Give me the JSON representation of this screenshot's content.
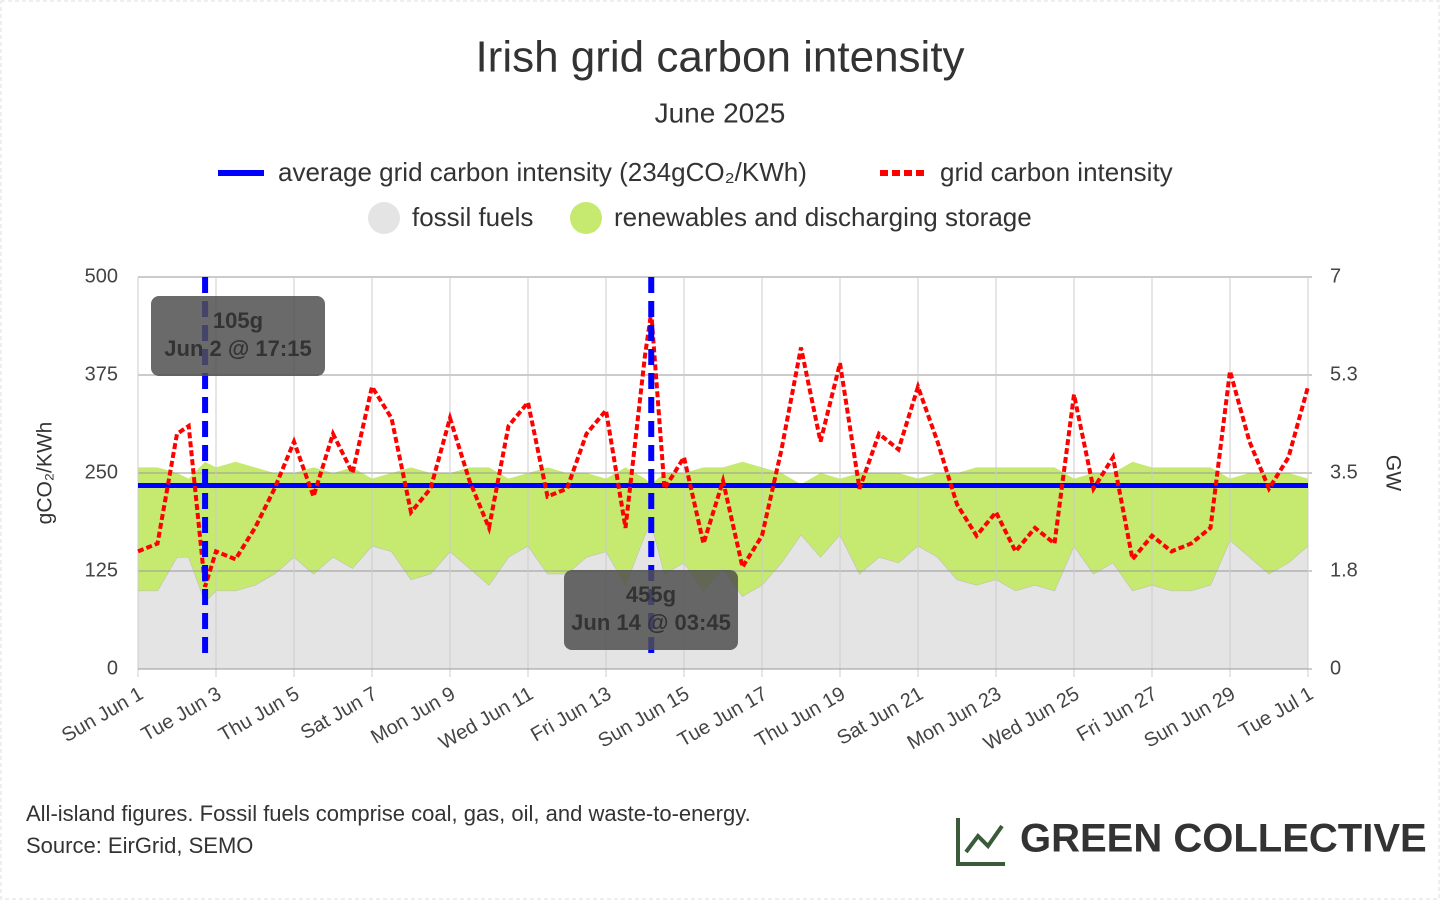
{
  "chart_data": {
    "type": "line",
    "title": "Irish grid carbon intensity",
    "subtitle": "June 2025",
    "ylabel": "gCO₂/KWh",
    "y2label": "GW",
    "x": [
      1,
      1.5,
      2,
      2.3,
      2.72,
      3,
      3.5,
      4,
      4.5,
      5,
      5.5,
      6,
      6.5,
      7,
      7.5,
      8,
      8.5,
      9,
      9.5,
      10,
      10.5,
      11,
      11.5,
      12,
      12.5,
      13,
      13.5,
      14,
      14.16,
      14.5,
      15,
      15.5,
      16,
      16.5,
      17,
      17.5,
      18,
      18.5,
      19,
      19.5,
      20,
      20.5,
      21,
      21.5,
      22,
      22.5,
      23,
      23.5,
      24,
      24.5,
      25,
      25.5,
      26,
      26.5,
      27,
      27.5,
      28,
      28.5,
      29,
      29.5,
      30,
      30.5,
      31
    ],
    "series": [
      {
        "name": "grid carbon intensity",
        "color": "#ff0000",
        "values": [
          150,
          160,
          300,
          310,
          105,
          150,
          140,
          180,
          230,
          290,
          220,
          300,
          250,
          360,
          320,
          200,
          230,
          320,
          240,
          180,
          310,
          340,
          220,
          230,
          300,
          330,
          180,
          400,
          455,
          230,
          270,
          160,
          240,
          130,
          170,
          280,
          410,
          290,
          390,
          230,
          300,
          280,
          360,
          290,
          210,
          170,
          200,
          150,
          180,
          160,
          350,
          230,
          270,
          140,
          170,
          150,
          160,
          180,
          380,
          290,
          230,
          270,
          360
        ]
      },
      {
        "name": "fossil fuels",
        "color": "#e4e4e4",
        "axis": "y2",
        "values": [
          1.4,
          1.4,
          2.0,
          2.0,
          1.2,
          1.4,
          1.4,
          1.5,
          1.7,
          2.0,
          1.7,
          2.0,
          1.8,
          2.2,
          2.1,
          1.6,
          1.7,
          2.1,
          1.8,
          1.5,
          2.0,
          2.2,
          1.7,
          1.7,
          2.0,
          2.1,
          1.5,
          2.4,
          2.6,
          1.7,
          1.9,
          1.4,
          1.8,
          1.3,
          1.5,
          1.9,
          2.4,
          2.0,
          2.4,
          1.7,
          2.0,
          1.9,
          2.2,
          2.0,
          1.6,
          1.5,
          1.6,
          1.4,
          1.5,
          1.4,
          2.2,
          1.7,
          1.9,
          1.4,
          1.5,
          1.4,
          1.4,
          1.5,
          2.3,
          2.0,
          1.7,
          1.9,
          2.2
        ]
      },
      {
        "name": "renewables and discharging storage",
        "color": "#c5ea6f",
        "axis": "y2",
        "values": [
          2.2,
          2.2,
          1.5,
          1.4,
          2.5,
          2.2,
          2.3,
          2.1,
          1.8,
          1.5,
          1.9,
          1.5,
          1.8,
          1.2,
          1.4,
          2.0,
          1.8,
          1.4,
          1.8,
          2.1,
          1.4,
          1.3,
          1.9,
          1.8,
          1.5,
          1.3,
          2.1,
          1.0,
          0.7,
          1.8,
          1.6,
          2.2,
          1.8,
          2.4,
          2.1,
          1.6,
          0.9,
          1.5,
          1.0,
          1.8,
          1.5,
          1.6,
          1.2,
          1.5,
          1.9,
          2.1,
          2.0,
          2.2,
          2.1,
          2.2,
          1.2,
          1.8,
          1.6,
          2.3,
          2.1,
          2.2,
          2.2,
          2.1,
          1.1,
          1.5,
          1.8,
          1.6,
          1.2
        ]
      }
    ],
    "average": {
      "name": "average grid carbon intensity (234gCO₂/KWh)",
      "value": 234,
      "color": "#0000ff"
    },
    "markers": [
      {
        "x": 2.72,
        "lines": [
          "105g",
          "Jun 2 @ 17:15"
        ]
      },
      {
        "x": 14.16,
        "lines": [
          "455g",
          "Jun 14 @ 03:45"
        ]
      }
    ],
    "xlim": [
      1,
      31
    ],
    "xticks": [
      {
        "value": 1,
        "label": "Sun Jun 1"
      },
      {
        "value": 3,
        "label": "Tue Jun 3"
      },
      {
        "value": 5,
        "label": "Thu Jun 5"
      },
      {
        "value": 7,
        "label": "Sat Jun 7"
      },
      {
        "value": 9,
        "label": "Mon Jun 9"
      },
      {
        "value": 11,
        "label": "Wed Jun 11"
      },
      {
        "value": 13,
        "label": "Fri Jun 13"
      },
      {
        "value": 15,
        "label": "Sun Jun 15"
      },
      {
        "value": 17,
        "label": "Tue Jun 17"
      },
      {
        "value": 19,
        "label": "Thu Jun 19"
      },
      {
        "value": 21,
        "label": "Sat Jun 21"
      },
      {
        "value": 23,
        "label": "Mon Jun 23"
      },
      {
        "value": 25,
        "label": "Wed Jun 25"
      },
      {
        "value": 27,
        "label": "Fri Jun 27"
      },
      {
        "value": 29,
        "label": "Sun Jun 29"
      },
      {
        "value": 31,
        "label": "Tue Jul 1"
      }
    ],
    "ylim": [
      0,
      500
    ],
    "yticks": [
      0,
      125,
      250,
      375,
      500
    ],
    "y2lim": [
      0,
      7
    ],
    "y2ticks": [
      0,
      {
        "value": 1.75,
        "label": "1.8"
      },
      3.5,
      {
        "value": 5.25,
        "label": "5.3"
      },
      7
    ],
    "grid": true,
    "footnote": [
      "All-island figures. Fossil fuels comprise coal, gas, oil, and waste-to-energy.",
      "Source: EirGrid, SEMO"
    ],
    "brand": "GREEN COLLECTIVE"
  }
}
